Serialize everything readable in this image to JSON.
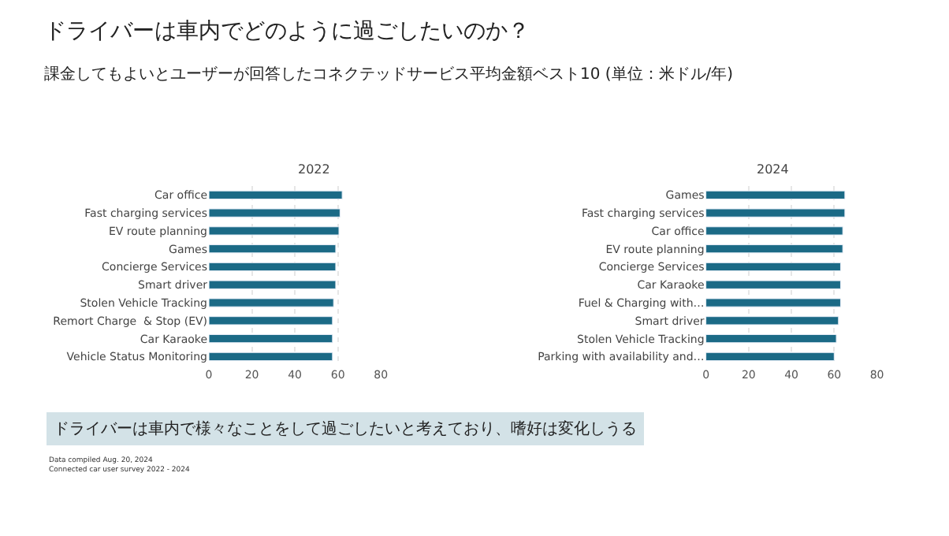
{
  "chart_data": [
    {
      "type": "bar",
      "orientation": "horizontal",
      "title": "2022",
      "subtitle": "課金してもよいとユーザーが回答したコネクテッドサービス平均金額ベスト10 (単位：米ドル/年)",
      "annotations": [
        "ドライバーは車内でどのように過ごしたいのか？",
        "ドライバーは車内で様々なことをして過ごしたいと考えており、嗜好は変化しうる",
        "Data compiled Aug. 20, 2024",
        "Connected car user survey 2022 - 2024"
      ],
      "categories": [
        "Car office",
        "Fast charging services",
        "EV route planning",
        "Games",
        "Concierge Services",
        "Smart driver",
        "Stolen Vehicle Tracking",
        "Remort Charge  & Stop (EV)",
        "Car Karaoke",
        "Vehicle Status Monitoring"
      ],
      "values": [
        62,
        61,
        60.5,
        59,
        59,
        59,
        58,
        57.5,
        57.5,
        57.5
      ],
      "color": "#1b6a86",
      "xlim": [
        0,
        80
      ],
      "xticks": [
        0,
        20,
        40,
        60,
        80
      ],
      "grid": "x"
    },
    {
      "type": "bar",
      "orientation": "horizontal",
      "title": "2024",
      "categories": [
        "Games",
        "Fast charging services",
        "Car office",
        "EV route planning",
        "Concierge Services",
        "Car Karaoke",
        "Fuel & Charging with…",
        "Smart driver",
        "Stolen Vehicle Tracking",
        "Parking with availability and…"
      ],
      "values": [
        65,
        65,
        64,
        64,
        63,
        63,
        63,
        62,
        61,
        60
      ],
      "color": "#1b6a86",
      "xlim": [
        0,
        80
      ],
      "xticks": [
        0,
        20,
        40,
        60,
        80
      ],
      "grid": "x"
    }
  ]
}
